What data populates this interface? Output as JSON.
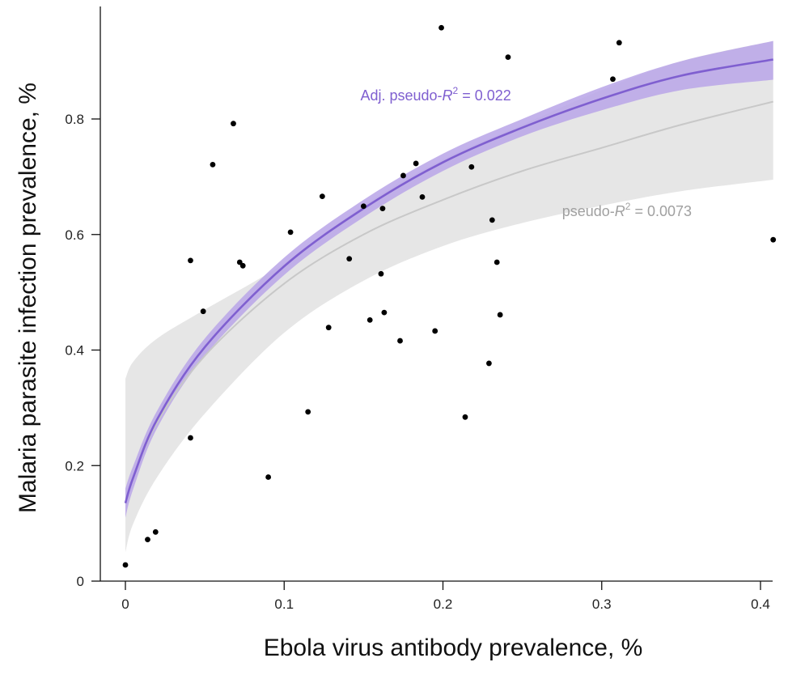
{
  "chart_data": {
    "type": "scatter",
    "xlabel": "Ebola virus antibody prevalence, %",
    "ylabel": "Malaria parasite infection prevalence, %",
    "xlim": [
      0,
      0.41
    ],
    "ylim": [
      0,
      1.0
    ],
    "xticks": [
      0,
      0.1,
      0.2,
      0.3,
      0.4
    ],
    "xtick_labels": [
      "0",
      "0.1",
      "0.2",
      "0.3",
      "0.4"
    ],
    "yticks": [
      0,
      0.2,
      0.4,
      0.6,
      0.8
    ],
    "ytick_labels": [
      "0",
      "0.2",
      "0.4",
      "0.6",
      "0.8"
    ],
    "grid": false,
    "points": [
      {
        "x": 0.0,
        "y": 0.028
      },
      {
        "x": 0.014,
        "y": 0.072
      },
      {
        "x": 0.019,
        "y": 0.085
      },
      {
        "x": 0.041,
        "y": 0.555
      },
      {
        "x": 0.041,
        "y": 0.248
      },
      {
        "x": 0.049,
        "y": 0.467
      },
      {
        "x": 0.055,
        "y": 0.721
      },
      {
        "x": 0.068,
        "y": 0.792
      },
      {
        "x": 0.072,
        "y": 0.552
      },
      {
        "x": 0.074,
        "y": 0.546
      },
      {
        "x": 0.09,
        "y": 0.18
      },
      {
        "x": 0.104,
        "y": 0.604
      },
      {
        "x": 0.115,
        "y": 0.293
      },
      {
        "x": 0.124,
        "y": 0.666
      },
      {
        "x": 0.128,
        "y": 0.439
      },
      {
        "x": 0.141,
        "y": 0.558
      },
      {
        "x": 0.15,
        "y": 0.649
      },
      {
        "x": 0.154,
        "y": 0.452
      },
      {
        "x": 0.161,
        "y": 0.532
      },
      {
        "x": 0.162,
        "y": 0.645
      },
      {
        "x": 0.163,
        "y": 0.465
      },
      {
        "x": 0.173,
        "y": 0.416
      },
      {
        "x": 0.175,
        "y": 0.702
      },
      {
        "x": 0.183,
        "y": 0.723
      },
      {
        "x": 0.187,
        "y": 0.665
      },
      {
        "x": 0.195,
        "y": 0.433
      },
      {
        "x": 0.199,
        "y": 0.958
      },
      {
        "x": 0.214,
        "y": 0.284
      },
      {
        "x": 0.218,
        "y": 0.717
      },
      {
        "x": 0.229,
        "y": 0.377
      },
      {
        "x": 0.231,
        "y": 0.625
      },
      {
        "x": 0.234,
        "y": 0.552
      },
      {
        "x": 0.236,
        "y": 0.461
      },
      {
        "x": 0.241,
        "y": 0.907
      },
      {
        "x": 0.307,
        "y": 0.869
      },
      {
        "x": 0.311,
        "y": 0.932
      },
      {
        "x": 0.408,
        "y": 0.591
      }
    ],
    "fits": [
      {
        "color": "#7f5fd0",
        "band_color": "#b8a4e8",
        "x": [
          0.0,
          0.005,
          0.02,
          0.05,
          0.1,
          0.15,
          0.2,
          0.25,
          0.3,
          0.35,
          0.408
        ],
        "y": [
          0.135,
          0.18,
          0.28,
          0.405,
          0.545,
          0.645,
          0.725,
          0.785,
          0.835,
          0.875,
          0.903
        ],
        "lower": [
          0.11,
          0.16,
          0.265,
          0.39,
          0.53,
          0.63,
          0.71,
          0.77,
          0.815,
          0.85,
          0.868
        ],
        "upper": [
          0.16,
          0.2,
          0.295,
          0.42,
          0.56,
          0.66,
          0.74,
          0.8,
          0.855,
          0.9,
          0.935
        ]
      },
      {
        "color": "#c8c8c8",
        "band_color": "#e6e6e6",
        "x": [
          0.0,
          0.005,
          0.02,
          0.05,
          0.1,
          0.15,
          0.2,
          0.25,
          0.3,
          0.35,
          0.408
        ],
        "y": [
          0.135,
          0.18,
          0.275,
          0.39,
          0.515,
          0.6,
          0.66,
          0.71,
          0.75,
          0.79,
          0.83
        ],
        "lower": [
          0.05,
          0.1,
          0.18,
          0.29,
          0.43,
          0.52,
          0.58,
          0.62,
          0.65,
          0.675,
          0.695
        ],
        "upper": [
          0.35,
          0.38,
          0.42,
          0.47,
          0.55,
          0.65,
          0.73,
          0.79,
          0.85,
          0.9,
          0.935
        ]
      }
    ],
    "annotations": [
      {
        "text": "Adj. pseudo-",
        "italic": "R",
        "sup": "2",
        "rest": " = 0.022",
        "color": "#7f5fd0",
        "x": 0.148,
        "y": 0.832
      },
      {
        "text": "pseudo-",
        "italic": "R",
        "sup": "2",
        "rest": " = 0.0073",
        "color": "#a0a0a0",
        "x": 0.275,
        "y": 0.632
      }
    ]
  }
}
